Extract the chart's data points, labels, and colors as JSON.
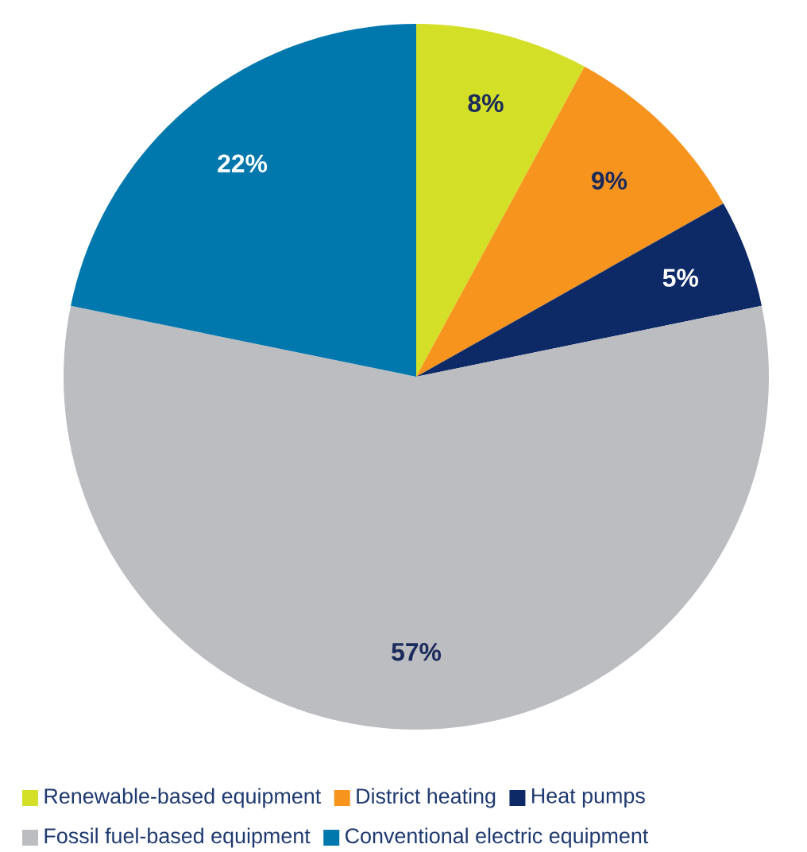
{
  "chart_data": {
    "type": "pie",
    "categories": [
      "Renewable-based equipment",
      "District heating",
      "Heat pumps",
      "Fossil fuel-based equipment",
      "Conventional electric equipment"
    ],
    "values": [
      8,
      9,
      5,
      57,
      22
    ],
    "colors": [
      "#d4df27",
      "#f7941d",
      "#0d2a67",
      "#bcbdc0",
      "#0077ad"
    ],
    "value_labels": [
      "8%",
      "9%",
      "5%",
      "57%",
      "22%"
    ],
    "legend": "bottom"
  }
}
